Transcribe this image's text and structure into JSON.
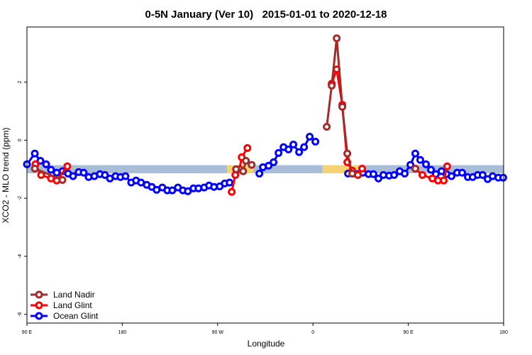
{
  "chart_data": {
    "type": "line",
    "title": "0-5N January (Ver 10)   2015-01-01 to 2020-12-18",
    "x_label": "Longitude",
    "y_label": "XCO2 - MLO trend (ppm)",
    "xlim": [
      90,
      540
    ],
    "xticks": [
      {
        "value": 90,
        "label": "90 E"
      },
      {
        "value": 180,
        "label": "180"
      },
      {
        "value": 270,
        "label": "90 W"
      },
      {
        "value": 360,
        "label": "0"
      },
      {
        "value": 450,
        "label": "90 E"
      },
      {
        "value": 540,
        "label": "180"
      }
    ],
    "ylim": [
      -6.3,
      3.9
    ],
    "yticks": [
      2,
      0,
      -2,
      -4,
      -6
    ],
    "legend": "bottom-left",
    "band": {
      "y": -1.0,
      "half_width": 0.14,
      "segments": [
        {
          "x": [
            90,
            279
          ],
          "color": "#a9bcd8"
        },
        {
          "x": [
            279,
            304
          ],
          "color": "#f5d372"
        },
        {
          "x": [
            304,
            369
          ],
          "color": "#a9bcd8"
        },
        {
          "x": [
            369,
            406
          ],
          "color": "#f5d372"
        },
        {
          "x": [
            406,
            540
          ],
          "color": "#a9bcd8"
        }
      ]
    },
    "series": [
      {
        "name": "Land Nadir",
        "color": "#a52a2a",
        "x": [
          97.4,
          123.5,
          null,
          287.4,
          294.1,
          296.7,
          302.1,
          null,
          373,
          377.7,
          382.4,
          387.7,
          392.4,
          397.1,
          null,
          456.6
        ],
        "values": [
          -0.98,
          -1.37,
          null,
          -1.0,
          -1.07,
          -0.71,
          -0.85,
          null,
          0.46,
          1.88,
          3.51,
          1.15,
          -0.46,
          -1.15,
          null,
          -0.98
        ]
      },
      {
        "name": "Land Glint",
        "color": "#ff0000",
        "x": [
          98,
          103.4,
          112.7,
          118.1,
          128.1,
          null,
          283.3,
          286.7,
          290.7,
          292.7,
          298.1,
          null,
          377.7,
          382.4,
          387.7,
          392.4,
          397.1,
          402.4,
          406.4,
          null,
          456.6,
          463.3,
          472.7,
          478,
          483.4,
          486.7
        ],
        "values": [
          -0.83,
          -1.2,
          -1.32,
          -1.39,
          -0.9,
          null,
          -1.78,
          -1.2,
          -1.0,
          -0.59,
          -0.27,
          null,
          1.95,
          2.44,
          1.22,
          -0.76,
          -1.05,
          -1.2,
          -0.98,
          null,
          -0.98,
          -1.2,
          -1.32,
          -1.39,
          -1.39,
          -0.9
        ]
      },
      {
        "name": "Ocean Glint",
        "color": "#0000ff",
        "x": [
          90,
          97.4,
          102.7,
          108.1,
          112.7,
          118.1,
          123.5,
          128.8,
          133.5,
          138.8,
          143.5,
          148.2,
          153.6,
          158.9,
          163.6,
          168.3,
          173.6,
          178.3,
          183,
          188.4,
          193,
          197.7,
          203.1,
          207.8,
          212.4,
          217.8,
          222.5,
          227.2,
          232.5,
          237.2,
          241.9,
          247.2,
          251.9,
          257.3,
          261.9,
          266.6,
          272,
          276.7,
          281.3,
          null,
          309.4,
          312.8,
          318.1,
          322.8,
          327.5,
          332.2,
          336.9,
          341.5,
          346.9,
          351.6,
          356.9,
          362.3,
          null,
          393.1,
          397.7,
          402.4,
          407.1,
          412.5,
          417.1,
          421.8,
          426.5,
          431.9,
          436.6,
          441.9,
          446.6,
          452,
          456.6,
          461.3,
          466.7,
          471.4,
          476,
          481.4,
          486.1,
          490.8,
          496.1,
          500.8,
          506.2,
          510.8,
          515.5,
          520.2,
          524.9,
          529.6,
          535,
          539.6
        ],
        "values": [
          -0.83,
          -0.46,
          -0.71,
          -0.83,
          -1.02,
          -1.12,
          -1.07,
          -1.15,
          -1.24,
          -1.1,
          -1.12,
          -1.27,
          -1.24,
          -1.17,
          -1.2,
          -1.32,
          -1.24,
          -1.27,
          -1.24,
          -1.46,
          -1.39,
          -1.46,
          -1.54,
          -1.61,
          -1.71,
          -1.63,
          -1.73,
          -1.73,
          -1.63,
          -1.73,
          -1.76,
          -1.66,
          -1.66,
          -1.63,
          -1.56,
          -1.61,
          -1.59,
          -1.49,
          -1.46,
          null,
          -1.15,
          -0.93,
          -0.88,
          -0.76,
          -0.44,
          -0.24,
          -0.32,
          -0.15,
          -0.41,
          -0.24,
          0.12,
          -0.05,
          null,
          -1.15,
          -1.15,
          -1.17,
          -1.12,
          -1.17,
          -1.17,
          -1.32,
          -1.2,
          -1.22,
          -1.2,
          -1.07,
          -1.15,
          -0.85,
          -0.46,
          -0.68,
          -0.83,
          -1.02,
          -1.17,
          -1.07,
          -1.17,
          -1.24,
          -1.12,
          -1.12,
          -1.27,
          -1.27,
          -1.2,
          -1.2,
          -1.34,
          -1.24,
          -1.29,
          -1.29
        ]
      }
    ]
  }
}
